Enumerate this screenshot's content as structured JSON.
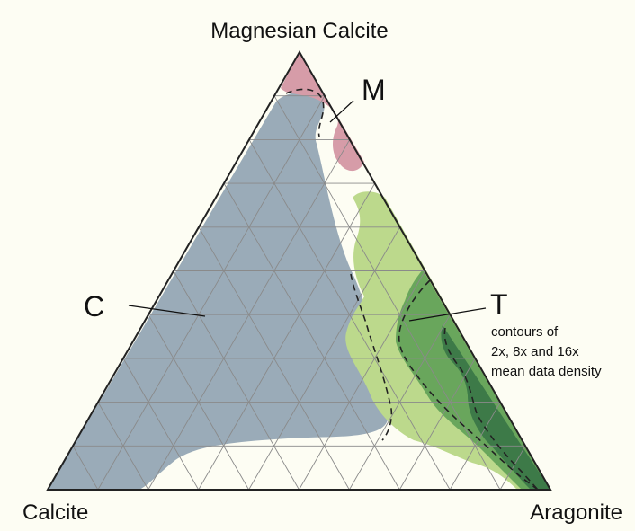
{
  "diagram": {
    "vertices": {
      "top": "Magnesian Calcite",
      "bottom_left": "Calcite",
      "bottom_right": "Aragonite"
    },
    "regions": [
      {
        "letter": "C",
        "color": "#9aabb8"
      },
      {
        "letter": "M",
        "color": "#d69ca8"
      },
      {
        "letter": "T",
        "color": "#bcd98c"
      }
    ],
    "contour_colors": {
      "level_1": "#bcd98c",
      "level_2": "#69a65c",
      "level_3": "#3d7a48"
    },
    "contour_note": [
      "contours of",
      "2x, 8x and 16x",
      "mean data density"
    ],
    "grid_divisions": 10
  }
}
